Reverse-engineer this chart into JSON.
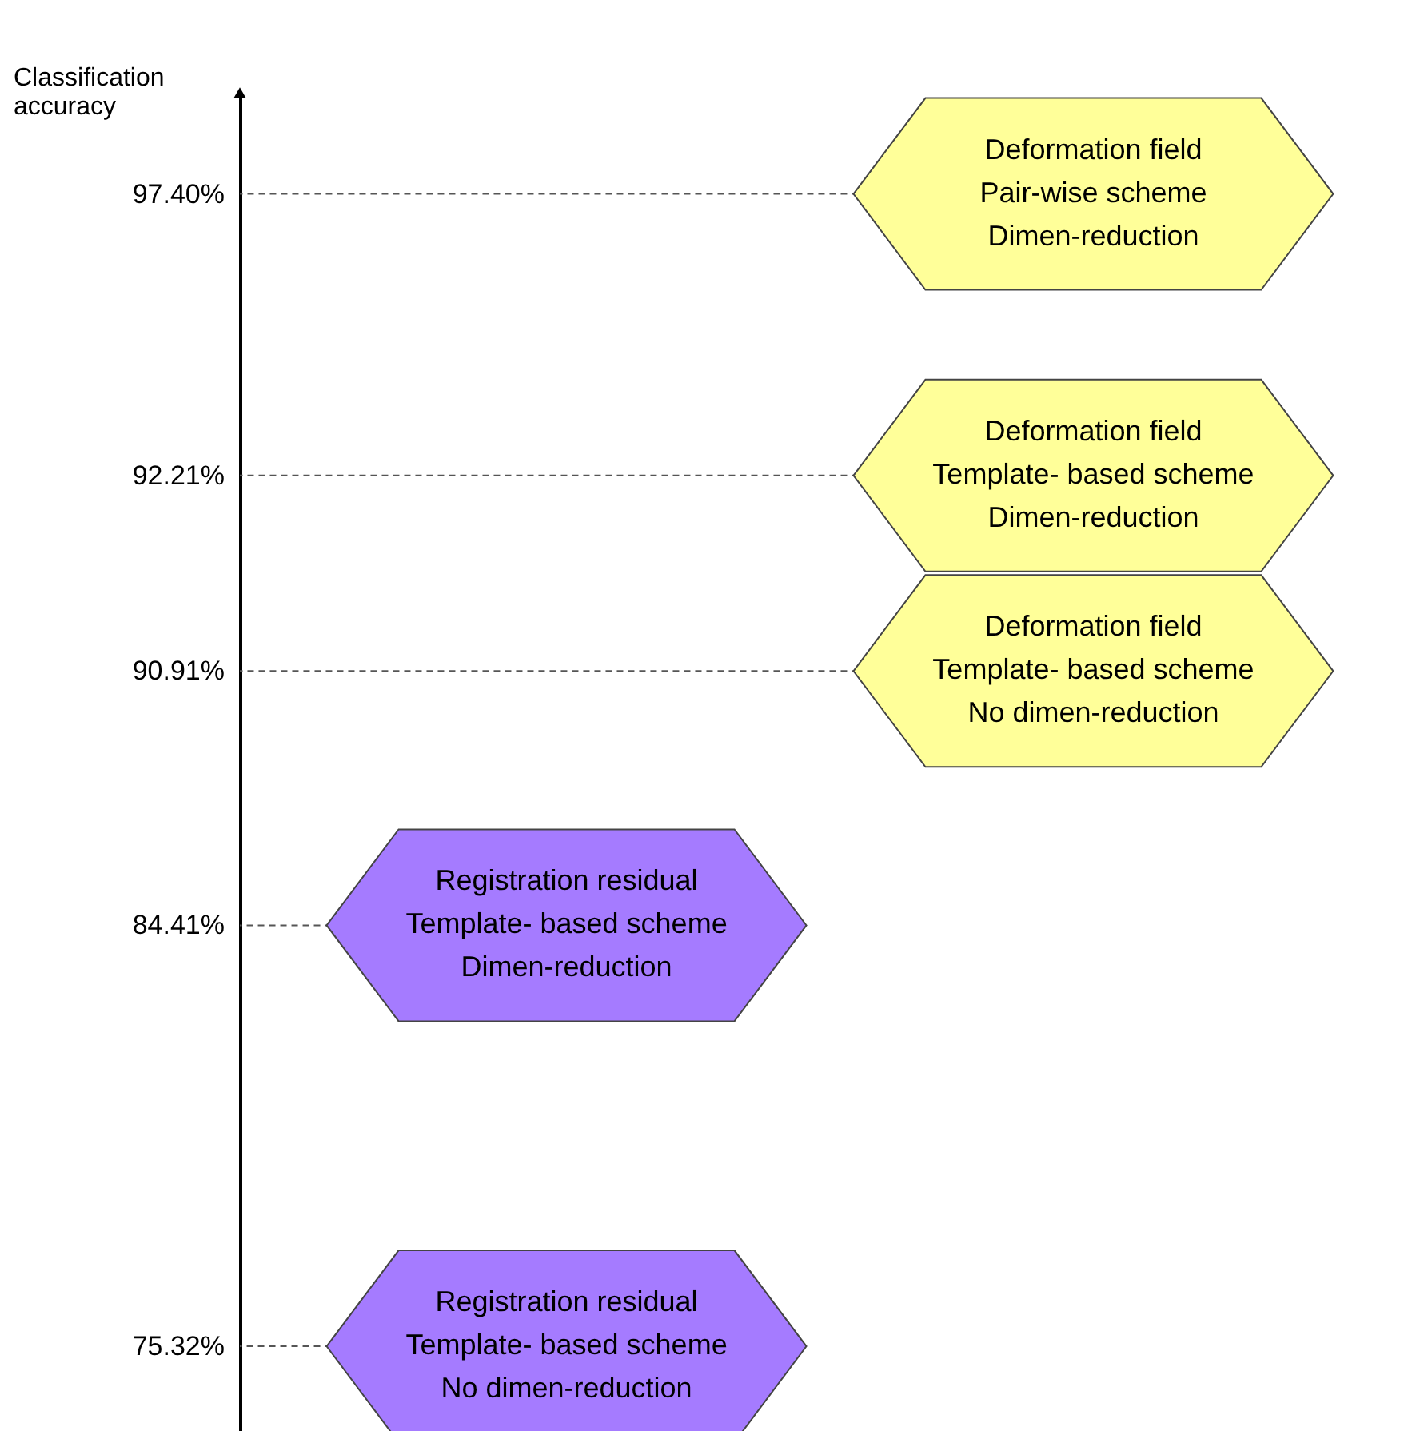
{
  "chart_data": {
    "type": "other",
    "ylabel": "Classification accuracy",
    "categories": [
      "Registration residual\nTemplate- based scheme\nDimen-reduction",
      "Registration residual\nTemplate- based scheme\nNo dimen-reduction",
      "Deformation field\nPair-wise scheme\nDimen-reduction",
      "Deformation field\nTemplate- based scheme\nDimen-reduction",
      "Deformation field\nTemplate- based scheme\nNo dimen-reduction"
    ],
    "values": [
      84.41,
      75.32,
      97.4,
      92.21,
      90.91
    ],
    "value_labels": [
      "84.41%",
      "75.32%",
      "97.40%",
      "92.21%",
      "90.91%"
    ],
    "colors": [
      "#a57bff",
      "#a57bff",
      "#ffff99",
      "#ffff99",
      "#ffff99"
    ]
  }
}
